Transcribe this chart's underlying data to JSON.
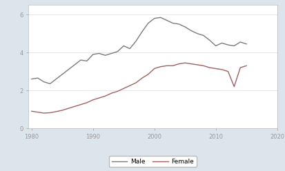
{
  "male_years": [
    1980,
    1981,
    1982,
    1983,
    1984,
    1985,
    1986,
    1987,
    1988,
    1989,
    1990,
    1991,
    1992,
    1993,
    1994,
    1995,
    1996,
    1997,
    1998,
    1999,
    2000,
    2001,
    2002,
    2003,
    2004,
    2005,
    2006,
    2007,
    2008,
    2009,
    2010,
    2011,
    2012,
    2013,
    2014,
    2015
  ],
  "male_values": [
    2.6,
    2.65,
    2.45,
    2.35,
    2.6,
    2.85,
    3.1,
    3.35,
    3.6,
    3.55,
    3.9,
    3.95,
    3.85,
    3.95,
    4.05,
    4.35,
    4.2,
    4.6,
    5.1,
    5.55,
    5.8,
    5.85,
    5.7,
    5.55,
    5.5,
    5.35,
    5.15,
    5.0,
    4.9,
    4.65,
    4.35,
    4.5,
    4.4,
    4.35,
    4.55,
    4.45
  ],
  "female_years": [
    1980,
    1981,
    1982,
    1983,
    1984,
    1985,
    1986,
    1987,
    1988,
    1989,
    1990,
    1991,
    1992,
    1993,
    1994,
    1995,
    1996,
    1997,
    1998,
    1999,
    2000,
    2001,
    2002,
    2003,
    2004,
    2005,
    2006,
    2007,
    2008,
    2009,
    2010,
    2011,
    2012,
    2013,
    2014,
    2015
  ],
  "female_values": [
    0.9,
    0.85,
    0.8,
    0.82,
    0.88,
    0.95,
    1.05,
    1.15,
    1.25,
    1.35,
    1.5,
    1.6,
    1.7,
    1.85,
    1.95,
    2.1,
    2.25,
    2.4,
    2.65,
    2.85,
    3.15,
    3.25,
    3.3,
    3.3,
    3.4,
    3.45,
    3.4,
    3.35,
    3.3,
    3.2,
    3.15,
    3.1,
    3.0,
    2.2,
    3.2,
    3.3
  ],
  "male_color": "#7a7a7a",
  "female_color": "#9e6060",
  "bg_color": "#dde5ec",
  "plot_bg_color": "#ffffff",
  "xticks": [
    1980,
    1990,
    2000,
    2010,
    2020
  ],
  "yticks": [
    0,
    2,
    4,
    6
  ],
  "ytick_labels": [
    "0",
    "2",
    "4",
    "6"
  ],
  "xlim": [
    1979.5,
    2020
  ],
  "ylim": [
    0,
    6.5
  ],
  "legend_male": "Male",
  "legend_female": "Female",
  "line_width": 1.0
}
